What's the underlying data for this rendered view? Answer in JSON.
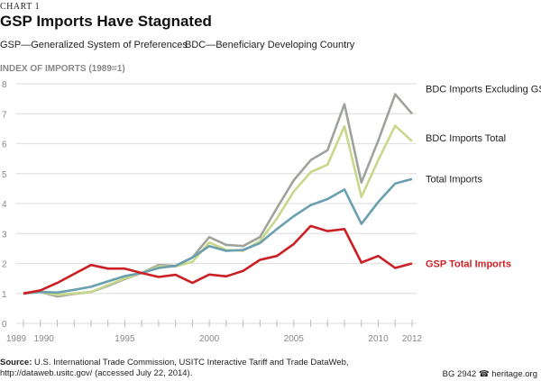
{
  "header": {
    "kicker": "CHART 1",
    "title": "GSP Imports Have Stagnated",
    "abbr1": "GSP—Generalized System of Preferences",
    "abbr2": "BDC—Beneficiary Developing Country"
  },
  "footer": {
    "source_label": "Source:",
    "source_text": " U.S. International Trade Commission, USITC Interactive Tariff and Trade DataWeb, http://dataweb.usitc.gov/ (accessed July 22, 2014).",
    "bg": "BG 2942",
    "site": "heritage.org",
    "phone_icon": "phone-icon"
  },
  "chart_data": {
    "type": "line",
    "title": "GSP Imports Have Stagnated",
    "ylabel": "INDEX OF IMPORTS (1989=1)",
    "xlabel": "",
    "ylim": [
      0,
      8
    ],
    "yticks": [
      "0",
      "1",
      "2",
      "3",
      "4",
      "5",
      "6",
      "7",
      "8"
    ],
    "xticks": [
      "1989",
      "1990",
      "1995",
      "2000",
      "2005",
      "2010",
      "2012"
    ],
    "xtick_values": [
      1989,
      1990,
      1995,
      2000,
      2005,
      2010,
      2012
    ],
    "grid": true,
    "legend": "right-inline",
    "x": [
      1989,
      1990,
      1991,
      1992,
      1993,
      1994,
      1995,
      1996,
      1997,
      1998,
      1999,
      2000,
      2001,
      2002,
      2003,
      2004,
      2005,
      2006,
      2007,
      2008,
      2009,
      2010,
      2011,
      2012
    ],
    "series": [
      {
        "name": "BDC Imports Excluding GSP",
        "color": "#9ea39c",
        "values": [
          1.0,
          1.05,
          0.9,
          0.98,
          1.05,
          1.25,
          1.48,
          1.68,
          1.95,
          1.92,
          2.2,
          2.88,
          2.62,
          2.58,
          2.88,
          3.85,
          4.78,
          5.45,
          5.78,
          7.32,
          4.7,
          6.1,
          7.65,
          7.0
        ]
      },
      {
        "name": "BDC Imports Total",
        "color": "#c8d88a",
        "values": [
          1.0,
          1.05,
          0.95,
          1.0,
          1.05,
          1.28,
          1.5,
          1.68,
          1.9,
          1.9,
          2.05,
          2.7,
          2.45,
          2.42,
          2.75,
          3.5,
          4.4,
          5.05,
          5.3,
          6.58,
          4.22,
          5.45,
          6.6,
          6.08
        ]
      },
      {
        "name": "Total Imports",
        "color": "#6a9fb0",
        "values": [
          1.0,
          1.05,
          1.03,
          1.12,
          1.22,
          1.4,
          1.58,
          1.68,
          1.85,
          1.92,
          2.2,
          2.58,
          2.42,
          2.45,
          2.68,
          3.15,
          3.58,
          3.95,
          4.15,
          4.47,
          3.32,
          4.05,
          4.67,
          4.82
        ]
      },
      {
        "name": "GSP Total Imports",
        "color": "#cc1f24",
        "values": [
          1.0,
          1.1,
          1.35,
          1.65,
          1.95,
          1.83,
          1.83,
          1.68,
          1.55,
          1.62,
          1.35,
          1.63,
          1.57,
          1.75,
          2.12,
          2.25,
          2.65,
          3.25,
          3.08,
          3.15,
          2.03,
          2.25,
          1.85,
          2.0
        ]
      }
    ]
  }
}
